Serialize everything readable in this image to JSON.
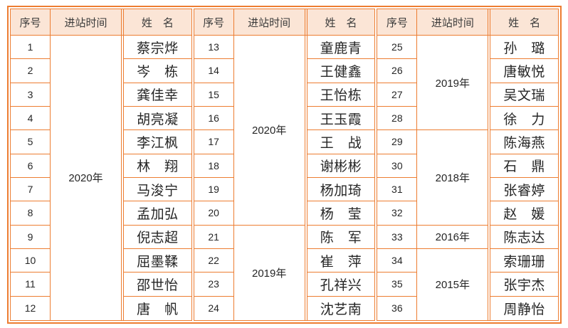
{
  "page": {
    "background": "#ffffff"
  },
  "colors": {
    "border": "#ED7D31",
    "header_bg": "#FBE5D6",
    "header_text": "#3b3b3b",
    "cell_text": "#262626"
  },
  "table": {
    "column_headers": {
      "seq": "序号",
      "time": "进站时间",
      "name": "姓　名"
    },
    "groups": [
      {
        "rows": [
          {
            "seq": "1",
            "name": "蔡宗烨"
          },
          {
            "seq": "2",
            "name": "岑　栋"
          },
          {
            "seq": "3",
            "name": "龚佳幸"
          },
          {
            "seq": "4",
            "name": "胡亮凝"
          },
          {
            "seq": "5",
            "name": "李江枫"
          },
          {
            "seq": "6",
            "name": "林　翔"
          },
          {
            "seq": "7",
            "name": "马浚宁"
          },
          {
            "seq": "8",
            "name": "孟加弘"
          },
          {
            "seq": "9",
            "name": "倪志超"
          },
          {
            "seq": "10",
            "name": "屈墨鞣"
          },
          {
            "seq": "11",
            "name": "邵世怡"
          },
          {
            "seq": "12",
            "name": "唐　帆"
          }
        ],
        "time_spans": [
          {
            "label": "2020年",
            "start": 0,
            "span": 12
          }
        ]
      },
      {
        "rows": [
          {
            "seq": "13",
            "name": "童鹿青"
          },
          {
            "seq": "14",
            "name": "王健鑫"
          },
          {
            "seq": "15",
            "name": "王怡栋"
          },
          {
            "seq": "16",
            "name": "王玉霞"
          },
          {
            "seq": "17",
            "name": "王　战"
          },
          {
            "seq": "18",
            "name": "谢彬彬"
          },
          {
            "seq": "19",
            "name": "杨加琦"
          },
          {
            "seq": "20",
            "name": "杨　莹"
          },
          {
            "seq": "21",
            "name": "陈　军"
          },
          {
            "seq": "22",
            "name": "崔　萍"
          },
          {
            "seq": "23",
            "name": "孔祥兴"
          },
          {
            "seq": "24",
            "name": "沈艺南"
          }
        ],
        "time_spans": [
          {
            "label": "2020年",
            "start": 0,
            "span": 8
          },
          {
            "label": "2019年",
            "start": 8,
            "span": 4
          }
        ]
      },
      {
        "rows": [
          {
            "seq": "25",
            "name": "孙　璐"
          },
          {
            "seq": "26",
            "name": "唐敏悦"
          },
          {
            "seq": "27",
            "name": "吴文瑞"
          },
          {
            "seq": "28",
            "name": "徐　力"
          },
          {
            "seq": "29",
            "name": "陈海燕"
          },
          {
            "seq": "30",
            "name": "石　鼎"
          },
          {
            "seq": "31",
            "name": "张睿婷"
          },
          {
            "seq": "32",
            "name": "赵　媛"
          },
          {
            "seq": "33",
            "name": "陈志达"
          },
          {
            "seq": "34",
            "name": "索珊珊"
          },
          {
            "seq": "35",
            "name": "张宇杰"
          },
          {
            "seq": "36",
            "name": "周静怡"
          }
        ],
        "time_spans": [
          {
            "label": "2019年",
            "start": 0,
            "span": 4
          },
          {
            "label": "2018年",
            "start": 4,
            "span": 4
          },
          {
            "label": "2016年",
            "start": 8,
            "span": 1
          },
          {
            "label": "2015年",
            "start": 9,
            "span": 3
          }
        ]
      }
    ]
  }
}
